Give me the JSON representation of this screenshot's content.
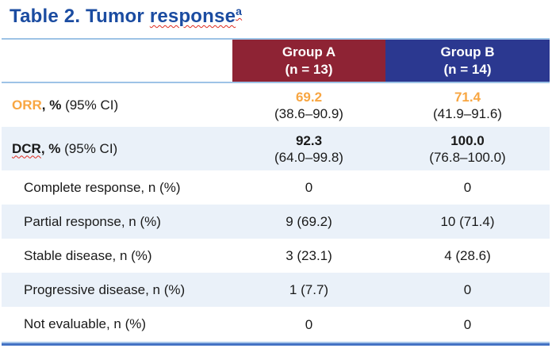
{
  "title": {
    "prefix": "Table 2. Tumor ",
    "highlight": "response",
    "superscript": "a"
  },
  "table": {
    "columns": [
      {
        "name": "Group A",
        "n": "(n = 13)",
        "header_color": "#8e2334"
      },
      {
        "name": "Group B",
        "n": "(n = 14)",
        "header_color": "#2b3890"
      }
    ],
    "rows": [
      {
        "label_em": "ORR",
        "label_bold": ", %",
        "label_rest": " (95% CI)",
        "group_a": "69.2",
        "group_a_ci": "(38.6–90.9)",
        "group_b": "71.4",
        "group_b_ci": "(41.9–91.6)"
      },
      {
        "label_em": "DCR",
        "label_bold": ", %",
        "label_rest": " (95% CI)",
        "group_a": "92.3",
        "group_a_ci": "(64.0–99.8)",
        "group_b": "100.0",
        "group_b_ci": "(76.8–100.0)"
      },
      {
        "label_rest": "Complete response, n (%)",
        "group_a": "0",
        "group_b": "0"
      },
      {
        "label_rest": "Partial response, n (%)",
        "group_a": "9 (69.2)",
        "group_b": "10 (71.4)"
      },
      {
        "label_rest": "Stable disease, n (%)",
        "group_a": "3 (23.1)",
        "group_b": "4 (28.6)"
      },
      {
        "label_rest": "Progressive disease, n (%)",
        "group_a": "1 (7.7)",
        "group_b": "0"
      },
      {
        "label_rest": "Not evaluable, n (%)",
        "group_a": "0",
        "group_b": "0"
      }
    ],
    "colors": {
      "title_blue": "#1b4ca1",
      "header_red": "#8e2334",
      "header_blue": "#2b3890",
      "row_stripe": "#eaf1f9",
      "rule_light": "#9dc3e6",
      "rule_bottom": "#4472c4",
      "accent_orange": "#f8a642",
      "squiggle_red": "#de2b1e"
    }
  }
}
